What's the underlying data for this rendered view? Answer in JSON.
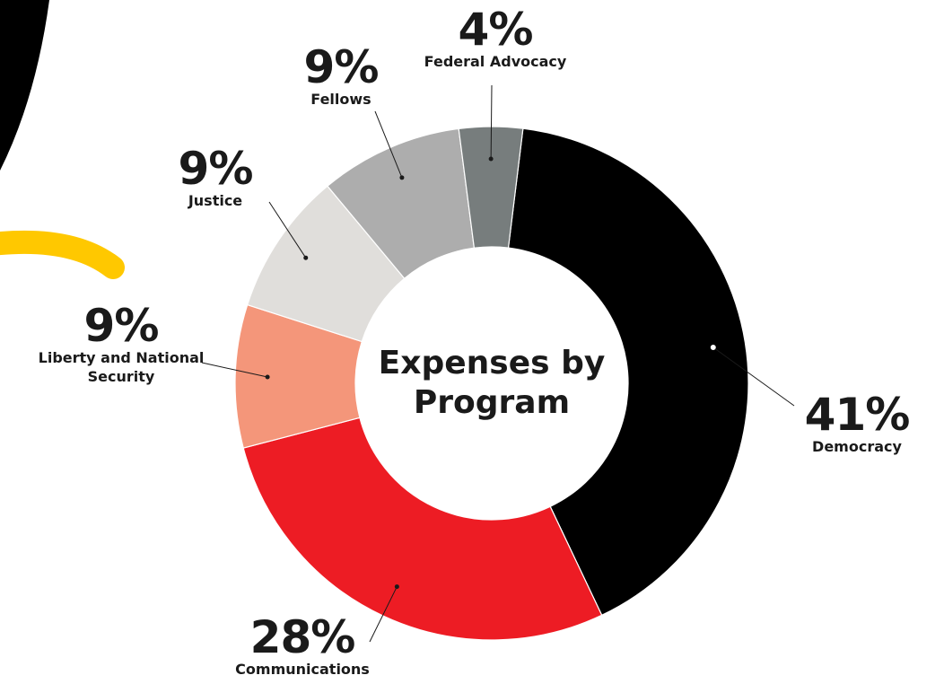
{
  "chart_data": {
    "type": "donut",
    "title": "Expenses by Program",
    "categories": [
      "Democracy",
      "Communications",
      "Liberty and National Security",
      "Justice",
      "Fellows",
      "Federal Advocacy"
    ],
    "values": [
      41,
      28,
      9,
      9,
      9,
      4
    ],
    "value_labels": [
      "41%",
      "28%",
      "9%",
      "9%",
      "9%",
      "4%"
    ],
    "colors": [
      "#000000",
      "#ed1c24",
      "#f4967a",
      "#e0dedb",
      "#adadad",
      "#777d7d"
    ]
  }
}
